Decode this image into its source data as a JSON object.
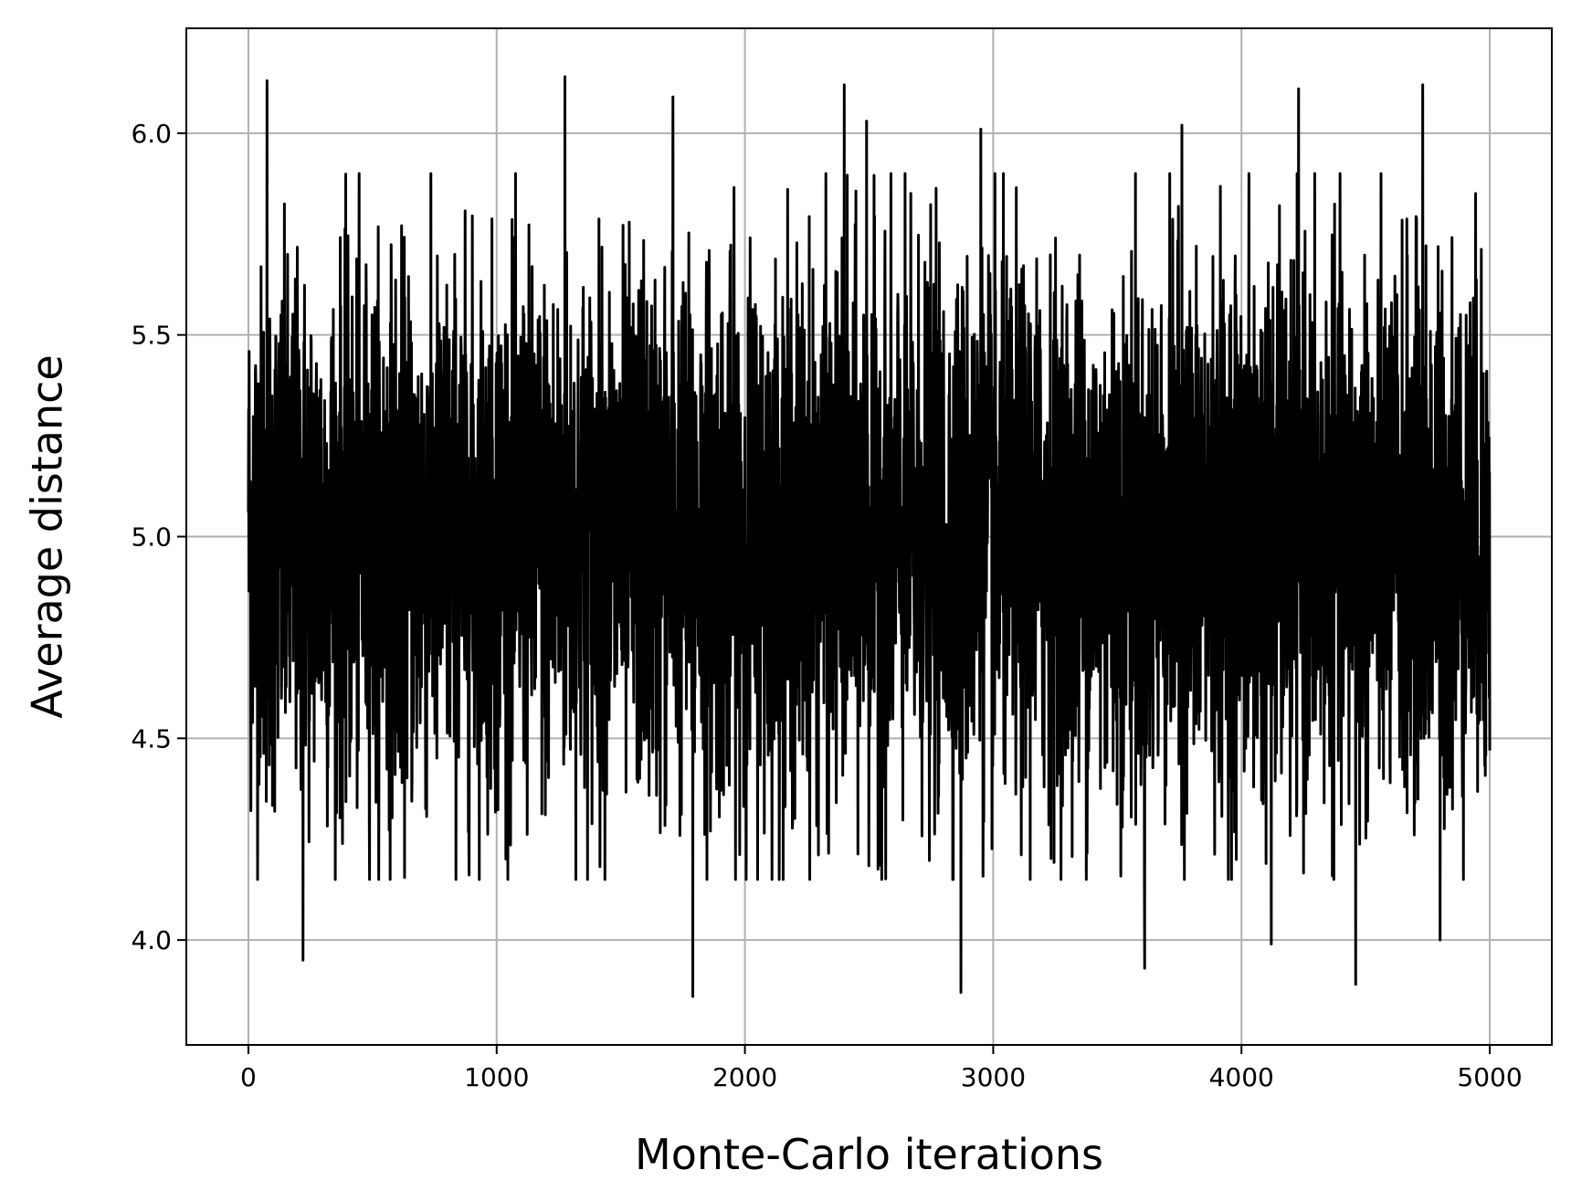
{
  "chart_data": {
    "type": "line",
    "title": "",
    "xlabel": "Monte-Carlo iterations",
    "ylabel": "Average distance",
    "xlim": [
      -250,
      5250
    ],
    "ylim": [
      3.74,
      6.26
    ],
    "xticks": [
      0,
      1000,
      2000,
      3000,
      4000,
      5000
    ],
    "xtick_labels": [
      "0",
      "1000",
      "2000",
      "3000",
      "4000",
      "5000"
    ],
    "yticks": [
      4.0,
      4.5,
      5.0,
      5.5,
      6.0
    ],
    "ytick_labels": [
      "4.0",
      "4.5",
      "5.0",
      "5.5",
      "6.0"
    ],
    "grid": true,
    "line_color": "#000000",
    "series": [
      {
        "x_range": [
          0,
          5000
        ],
        "n_points": 5000,
        "mean": 5.0,
        "observed_min": 3.87,
        "observed_max": 6.14,
        "notable_points": [
          {
            "x": 0,
            "y": 5.06
          },
          {
            "x": 75,
            "y": 6.13
          },
          {
            "x": 220,
            "y": 3.95
          },
          {
            "x": 1275,
            "y": 6.14
          },
          {
            "x": 1710,
            "y": 6.09
          },
          {
            "x": 1790,
            "y": 3.86
          },
          {
            "x": 2400,
            "y": 6.12
          },
          {
            "x": 2490,
            "y": 6.03
          },
          {
            "x": 2870,
            "y": 3.87
          },
          {
            "x": 2950,
            "y": 6.01
          },
          {
            "x": 3610,
            "y": 3.93
          },
          {
            "x": 3760,
            "y": 6.02
          },
          {
            "x": 4120,
            "y": 3.99
          },
          {
            "x": 4230,
            "y": 6.11
          },
          {
            "x": 4460,
            "y": 3.89
          },
          {
            "x": 4730,
            "y": 6.12
          },
          {
            "x": 4800,
            "y": 4.0
          },
          {
            "x": 5000,
            "y": 4.47
          }
        ]
      }
    ]
  }
}
